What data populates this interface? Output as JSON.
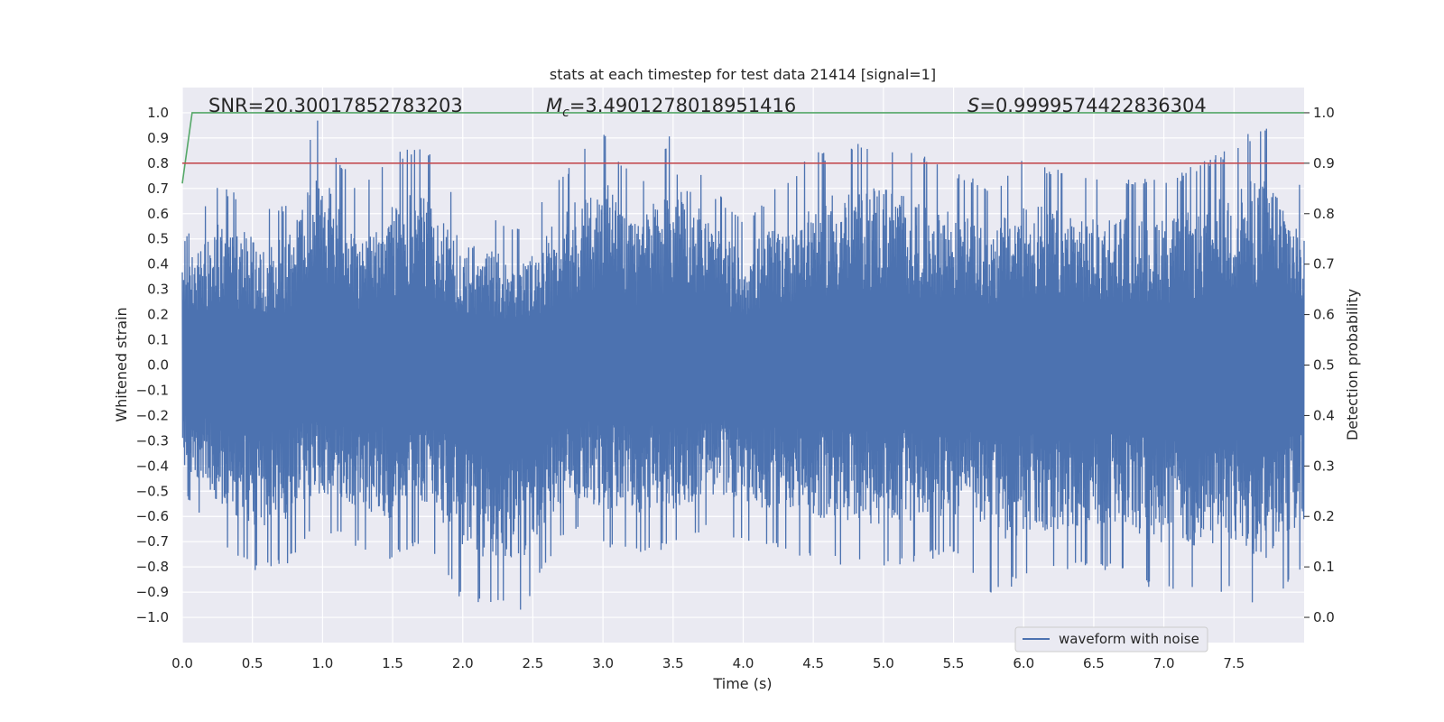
{
  "chart_data": {
    "type": "line",
    "title": "stats at each timestep for test data 21414 [signal=1]",
    "xlabel": "Time (s)",
    "ylabel": "Whitened strain",
    "y2label": "Detection probability",
    "xlim": [
      0.0,
      8.0
    ],
    "ylim": [
      -1.1,
      1.1
    ],
    "y2lim": [
      -0.05,
      1.05
    ],
    "x_ticks": [
      "0.0",
      "0.5",
      "1.0",
      "1.5",
      "2.0",
      "2.5",
      "3.0",
      "3.5",
      "4.0",
      "4.5",
      "5.0",
      "5.5",
      "6.0",
      "6.5",
      "7.0",
      "7.5"
    ],
    "y_ticks": [
      "1.0",
      "0.9",
      "0.8",
      "0.7",
      "0.6",
      "0.5",
      "0.4",
      "0.3",
      "0.2",
      "0.1",
      "0.0",
      "−0.1",
      "−0.2",
      "−0.3",
      "−0.4",
      "−0.5",
      "−0.6",
      "−0.7",
      "−0.8",
      "−0.9",
      "−1.0"
    ],
    "y2_ticks": [
      "1.0",
      "0.9",
      "0.8",
      "0.7",
      "0.6",
      "0.5",
      "0.4",
      "0.3",
      "0.2",
      "0.1",
      "0.0"
    ],
    "grid": true,
    "legend": {
      "placement": "bottom-right",
      "entries": [
        "waveform with noise"
      ]
    },
    "annotations": {
      "snr": "SNR=20.30017852783203",
      "mc_symbol": "M",
      "mc_sub": "c",
      "mc_value": "=3.4901278018951416",
      "s_symbol": "S",
      "s_value": "=0.9999574422836304"
    },
    "series": [
      {
        "name": "waveform with noise",
        "color": "#4c72b0",
        "sampled_envelope": {
          "x": [
            0.0,
            0.25,
            0.5,
            0.75,
            0.96,
            1.25,
            1.5,
            1.74,
            2.0,
            2.42,
            2.75,
            2.97,
            3.25,
            3.55,
            3.75,
            4.0,
            4.5,
            4.97,
            5.5,
            5.78,
            6.0,
            6.5,
            7.1,
            7.5,
            7.72,
            7.95
          ],
          "upper": [
            0.48,
            0.72,
            0.66,
            0.63,
            1.0,
            0.68,
            0.85,
            0.87,
            0.62,
            0.55,
            0.78,
            0.97,
            0.72,
            0.98,
            0.72,
            0.58,
            0.84,
            0.9,
            0.78,
            0.7,
            0.82,
            0.74,
            0.76,
            0.88,
            0.97,
            0.72
          ],
          "lower": [
            -0.5,
            -0.7,
            -0.82,
            -0.8,
            -0.65,
            -0.72,
            -0.78,
            -0.7,
            -0.96,
            -0.98,
            -0.65,
            -0.72,
            -0.75,
            -0.72,
            -0.66,
            -0.7,
            -0.78,
            -0.82,
            -0.75,
            -0.92,
            -0.86,
            -0.8,
            -0.93,
            -0.9,
            -0.99,
            -0.82
          ]
        }
      },
      {
        "name": "",
        "color": "#55a868",
        "axis": "right",
        "x": [
          0.0,
          0.07,
          0.1,
          0.15,
          8.0
        ],
        "y": [
          0.86,
          1.0,
          1.0,
          1.0,
          1.0
        ]
      },
      {
        "name": "",
        "color": "#c44e52",
        "axis": "right",
        "x": [
          0.0,
          8.0
        ],
        "y": [
          0.9,
          0.9
        ]
      }
    ],
    "colors": {
      "plot_bg": "#eaeaf2",
      "grid": "#ffffff",
      "text": "#262626"
    }
  }
}
